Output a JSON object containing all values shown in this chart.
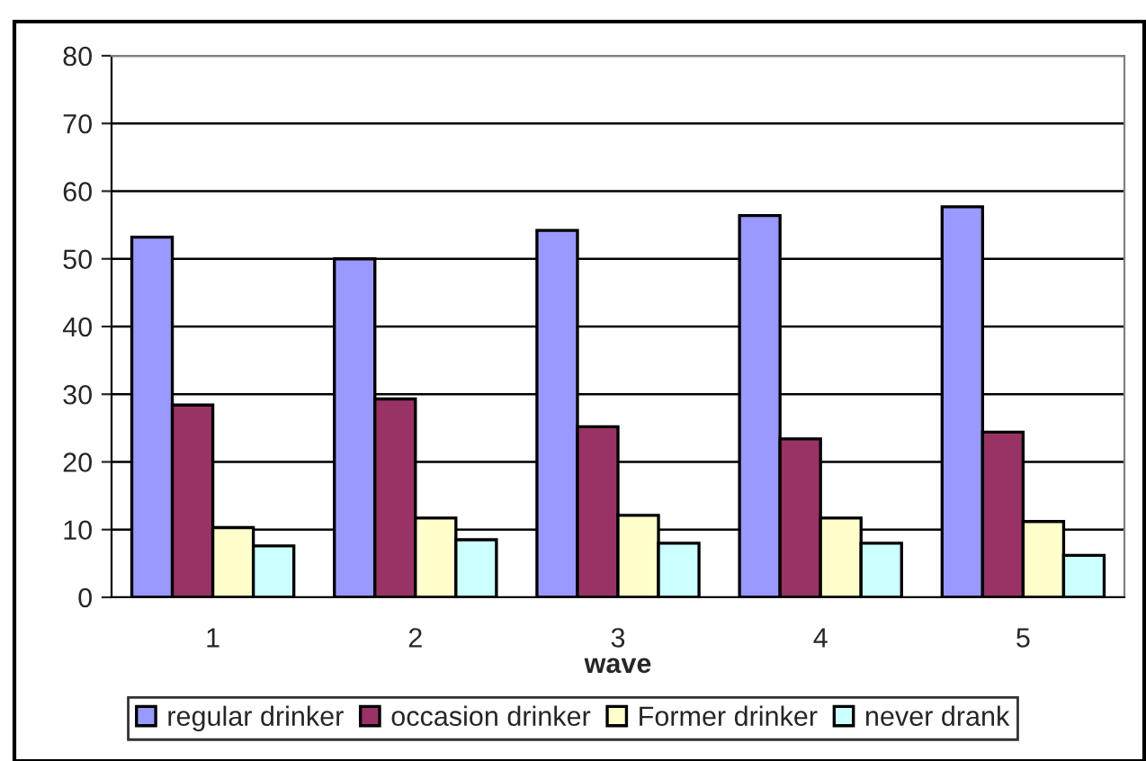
{
  "chart_data": {
    "type": "bar",
    "xlabel": "wave",
    "categories": [
      "1",
      "2",
      "3",
      "4",
      "5"
    ],
    "series": [
      {
        "name": "regular drinker",
        "color": "#9999ff",
        "values": [
          53.2,
          50.0,
          54.2,
          56.4,
          57.7
        ]
      },
      {
        "name": "occasion drinker",
        "color": "#993366",
        "values": [
          28.4,
          29.3,
          25.2,
          23.4,
          24.4
        ]
      },
      {
        "name": "Former drinker",
        "color": "#ffffcc",
        "values": [
          10.3,
          11.7,
          12.1,
          11.7,
          11.2
        ]
      },
      {
        "name": "never drank",
        "color": "#ccffff",
        "values": [
          7.6,
          8.5,
          8.0,
          8.0,
          6.2
        ]
      }
    ],
    "ylim": [
      0,
      80
    ],
    "yticks": [
      0,
      10,
      20,
      30,
      40,
      50,
      60,
      70,
      80
    ],
    "grid": "y",
    "legend": "bottom"
  }
}
